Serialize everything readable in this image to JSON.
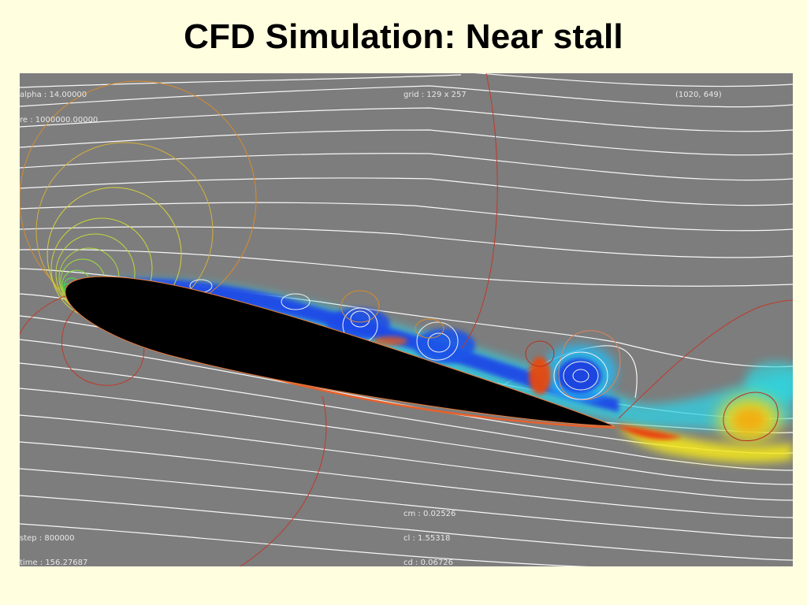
{
  "slide": {
    "title": "CFD Simulation: Near stall"
  },
  "readouts": {
    "alpha": "alpha : 14.00000",
    "re": "re : 1000000.00000",
    "grid": "grid : 129 x 257",
    "coords": "(1020, 649)",
    "step": "step : 800000",
    "time": "time : 156.27687",
    "cm": "cm : 0.02526",
    "cl": "cl : 1.55318",
    "cd": "cd : 0.06726"
  },
  "colors": {
    "background": "#ffffe0",
    "field": "#7d7d7d",
    "airfoil": "#000000",
    "streamlines": "#ffffff",
    "contour_red": "#c0392b",
    "contour_orange": "#d98b2a",
    "contour_yellow": "#d6d23a"
  }
}
